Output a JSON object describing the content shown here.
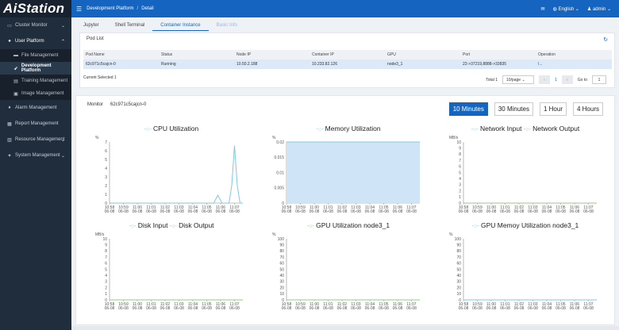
{
  "app": {
    "logo": "AiStation"
  },
  "sidebar": {
    "items": [
      {
        "label": "Cluster Monitor",
        "icon": "monitor-icon"
      },
      {
        "label": "User Platform",
        "icon": "user-icon"
      },
      {
        "label": "File Management",
        "icon": "folder-icon"
      },
      {
        "label": "Development Platform",
        "icon": "rocket-icon"
      },
      {
        "label": "Training Management",
        "icon": "training-icon"
      },
      {
        "label": "Image Management",
        "icon": "image-icon"
      },
      {
        "label": "Alarm Management",
        "icon": "alarm-icon"
      },
      {
        "label": "Report Management",
        "icon": "report-icon"
      },
      {
        "label": "Resource Management",
        "icon": "resource-icon"
      },
      {
        "label": "System Management",
        "icon": "settings-icon"
      }
    ]
  },
  "topbar": {
    "crumb1": "Development Platform",
    "sep": "/",
    "crumb2": "Detail",
    "language": "English",
    "user": "admin"
  },
  "tabs": [
    "Jupyter",
    "Shell Terminal",
    "Container Instance",
    "Basic Info"
  ],
  "pod_list": {
    "title": "Pod List",
    "columns": [
      "Pod Name",
      "Status",
      "Node IP",
      "Container IP",
      "GPU",
      "Port",
      "Operation"
    ],
    "rows": [
      [
        "62c971c5cajcn-0",
        "Running",
        "10.50.2.188",
        "10.233.82.126",
        "node3_1",
        "22->37219,8888->33835",
        "I..."
      ]
    ],
    "current_selected": "Current Selected 1",
    "total": "Total 1",
    "page_size": "10/page",
    "page": "1",
    "goto_label": "Go to",
    "goto_value": "1"
  },
  "monitor": {
    "label": "Monitor",
    "pod": "62c971c5cajcn-0",
    "ranges": [
      "10 Minutes",
      "30 Minutes",
      "1 Hour",
      "4 Hours"
    ],
    "selected_range": "10 Minutes"
  },
  "chart_data": [
    {
      "type": "line",
      "title": "",
      "ylabel": "%",
      "ylim": [
        0,
        7
      ],
      "yticks": [
        "0",
        "1",
        "2",
        "3",
        "4",
        "5",
        "6",
        "7"
      ],
      "x": [
        "10:58 06-08",
        "10:59 06-08",
        "11:00 06-08",
        "11:01 06-08",
        "11:02 06-08",
        "11:03 06-08",
        "11:04 06-08",
        "11:05 06-08",
        "11:06 06-08",
        "11:07 06-08"
      ],
      "series": [
        {
          "name": "CPU Utilization",
          "color": "#7fc8e3",
          "points": [
            [
              0,
              0
            ],
            [
              7.5,
              0
            ],
            [
              7.8,
              0.9
            ],
            [
              8.1,
              0
            ],
            [
              8.6,
              0
            ],
            [
              8.8,
              2
            ],
            [
              9.0,
              6.6
            ],
            [
              9.2,
              2
            ],
            [
              9.4,
              0
            ],
            [
              9.6,
              0
            ]
          ]
        }
      ]
    },
    {
      "type": "area",
      "title": "",
      "ylabel": "%",
      "ylim": [
        0,
        0.02
      ],
      "yticks": [
        "0",
        "0.005",
        "0.01",
        "0.015",
        "0.02"
      ],
      "x": [
        "10:58 06-08",
        "10:59 06-08",
        "11:00 06-08",
        "11:01 06-08",
        "11:02 06-08",
        "11:03 06-08",
        "11:04 06-08",
        "11:05 06-08",
        "11:06 06-08",
        "11:07 06-08"
      ],
      "series": [
        {
          "name": "Memory Utilization",
          "color": "#7fc8e3",
          "points": [
            [
              0,
              0.02
            ],
            [
              9.6,
              0.02
            ]
          ]
        }
      ]
    },
    {
      "type": "line",
      "title": "",
      "ylabel": "MB/s",
      "ylim": [
        0,
        10
      ],
      "yticks": [
        "0",
        "1",
        "2",
        "3",
        "4",
        "5",
        "6",
        "7",
        "8",
        "9",
        "10"
      ],
      "x": [
        "10:58 06-08",
        "10:59 06-08",
        "11:00 06-08",
        "11:01 06-08",
        "11:02 06-08",
        "11:03 06-08",
        "11:04 06-08",
        "11:05 06-08",
        "11:06 06-08",
        "11:07 06-08"
      ],
      "series": [
        {
          "name": "Network Input",
          "color": "#7fc8e3",
          "points": [
            [
              0,
              0
            ],
            [
              9.6,
              0
            ]
          ]
        },
        {
          "name": "Network Output",
          "color": "#8bd17c",
          "points": [
            [
              0,
              0
            ],
            [
              9.6,
              0
            ]
          ]
        }
      ]
    },
    {
      "type": "line",
      "title": "",
      "ylabel": "MB/s",
      "ylim": [
        0,
        10
      ],
      "yticks": [
        "0",
        "1",
        "2",
        "3",
        "4",
        "5",
        "6",
        "7",
        "8",
        "9",
        "10"
      ],
      "x": [
        "10:58 06-08",
        "10:59 06-08",
        "11:00 06-08",
        "11:01 06-08",
        "11:02 06-08",
        "11:03 06-08",
        "11:04 06-08",
        "11:05 06-08",
        "11:06 06-08",
        "11:07 06-08"
      ],
      "series": [
        {
          "name": "Disk Input",
          "color": "#7fc8e3",
          "points": [
            [
              0,
              0
            ],
            [
              9.6,
              0
            ]
          ]
        },
        {
          "name": "Disk Output",
          "color": "#8bd17c",
          "points": [
            [
              0,
              0
            ],
            [
              9.6,
              0
            ]
          ]
        }
      ]
    },
    {
      "type": "line",
      "title": "",
      "ylabel": "%",
      "ylim": [
        0,
        100
      ],
      "yticks": [
        "0",
        "10",
        "20",
        "30",
        "40",
        "50",
        "60",
        "70",
        "80",
        "90",
        "100"
      ],
      "x": [
        "10:58 06-08",
        "10:59 06-08",
        "11:00 06-08",
        "11:01 06-08",
        "11:02 06-08",
        "11:03 06-08",
        "11:04 06-08",
        "11:05 06-08",
        "11:06 06-08",
        "11:07 06-08"
      ],
      "series": [
        {
          "name": "GPU Utilization node3_1",
          "color": "#8bd17c",
          "points": [
            [
              0,
              0
            ],
            [
              9.6,
              0
            ]
          ]
        }
      ]
    },
    {
      "type": "line",
      "title": "",
      "ylabel": "%",
      "ylim": [
        0,
        100
      ],
      "yticks": [
        "0",
        "10",
        "20",
        "30",
        "40",
        "50",
        "60",
        "70",
        "80",
        "90",
        "100"
      ],
      "x": [
        "10:58 06-08",
        "10:59 06-08",
        "11:00 06-08",
        "11:01 06-08",
        "11:02 06-08",
        "11:03 06-08",
        "11:04 06-08",
        "11:05 06-08",
        "11:06 06-08",
        "11:07 06-08"
      ],
      "series": [
        {
          "name": "GPU Memoy Utilization node3_1",
          "color": "#7fc8e3",
          "points": [
            [
              0,
              0
            ],
            [
              9.6,
              0
            ]
          ]
        }
      ]
    }
  ]
}
